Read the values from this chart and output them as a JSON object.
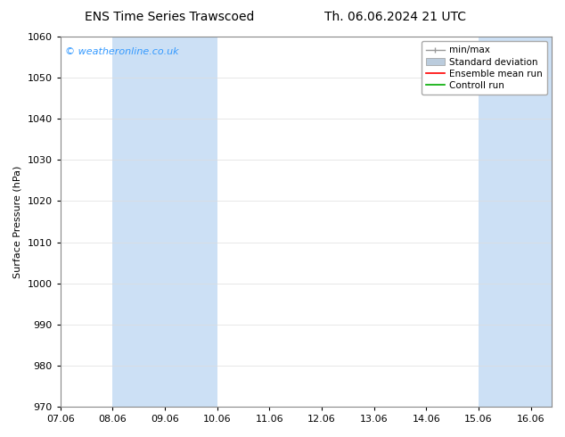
{
  "title_left": "ENS Time Series Trawscoed",
  "title_right": "Th. 06.06.2024 21 UTC",
  "ylabel": "Surface Pressure (hPa)",
  "ylim": [
    970,
    1060
  ],
  "yticks": [
    970,
    980,
    990,
    1000,
    1010,
    1020,
    1030,
    1040,
    1050,
    1060
  ],
  "xlim": [
    0,
    9.4
  ],
  "xtick_labels": [
    "07.06",
    "08.06",
    "09.06",
    "10.06",
    "11.06",
    "12.06",
    "13.06",
    "14.06",
    "15.06",
    "16.06"
  ],
  "xtick_positions": [
    0,
    1,
    2,
    3,
    4,
    5,
    6,
    7,
    8,
    9
  ],
  "watermark": "© weatheronline.co.uk",
  "watermark_color": "#3399ff",
  "background_color": "#ffffff",
  "plot_bg_color": "#ffffff",
  "shaded_bands": [
    {
      "x_start": 1.0,
      "x_end": 3.0,
      "color": "#cce0f5"
    },
    {
      "x_start": 8.0,
      "x_end": 9.4,
      "color": "#cce0f5"
    }
  ],
  "legend_items": [
    {
      "label": "min/max",
      "color": "#999999",
      "style": "minmax"
    },
    {
      "label": "Standard deviation",
      "color": "#bbccdd",
      "style": "fill"
    },
    {
      "label": "Ensemble mean run",
      "color": "#ff0000",
      "style": "line"
    },
    {
      "label": "Controll run",
      "color": "#00aa00",
      "style": "line"
    }
  ],
  "title_fontsize": 10,
  "axis_label_fontsize": 8,
  "tick_fontsize": 8,
  "watermark_fontsize": 8,
  "legend_fontsize": 7.5,
  "grid_color": "#dddddd",
  "border_color": "#888888",
  "shade_color": "#cce0f5"
}
